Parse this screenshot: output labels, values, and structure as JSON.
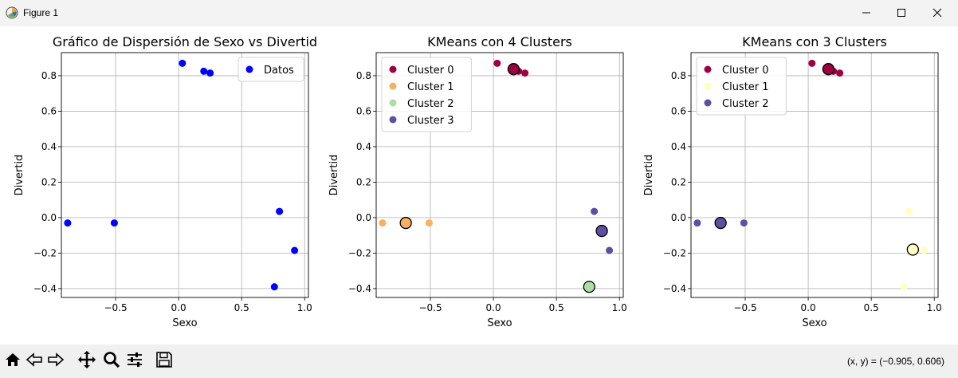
{
  "window": {
    "title": "Figure 1",
    "icon": "matplotlib-figure-icon",
    "controls": [
      "minimize-icon",
      "maximize-icon",
      "close-icon"
    ]
  },
  "toolbar": {
    "buttons": [
      "home-icon",
      "back-icon",
      "forward-icon",
      "pan-icon",
      "zoom-icon",
      "configure-subplots-icon",
      "save-icon"
    ],
    "coords_text": "(x, y) = (−0.905, 0.606)"
  },
  "colors": {
    "cluster0": "#9e0142",
    "cluster1_k4": "#fdae61",
    "cluster2_k4": "#abdda4",
    "cluster3_k4": "#5e4fa2",
    "cluster1_k3": "#ffffbf",
    "datos": "#0000ff"
  },
  "chart_data": [
    {
      "type": "scatter",
      "title": "Gráfico de Dispersión de Sexo vs Divertid",
      "xlabel": "Sexo",
      "ylabel": "Divertid",
      "xlim": [
        -0.93,
        1.03
      ],
      "ylim": [
        -0.45,
        0.93
      ],
      "xticks": [
        -0.5,
        0.0,
        0.5,
        1.0
      ],
      "xtick_labels": [
        "−0.5",
        "0.0",
        "0.5",
        "1.0"
      ],
      "yticks": [
        -0.4,
        -0.2,
        0.0,
        0.2,
        0.4,
        0.6,
        0.8
      ],
      "ytick_labels": [
        "−0.4",
        "−0.2",
        "0.0",
        "0.2",
        "0.4",
        "0.6",
        "0.8"
      ],
      "grid": true,
      "legend": "top-right",
      "series": [
        {
          "name": "Datos",
          "color": "#0000ff",
          "points": [
            [
              -0.88,
              -0.03
            ],
            [
              -0.51,
              -0.03
            ],
            [
              0.03,
              0.87
            ],
            [
              0.2,
              0.825
            ],
            [
              0.25,
              0.815
            ],
            [
              0.8,
              0.035
            ],
            [
              0.92,
              -0.185
            ],
            [
              0.76,
              -0.39
            ]
          ]
        }
      ]
    },
    {
      "type": "scatter",
      "title": "KMeans con 4 Clusters",
      "xlabel": "Sexo",
      "ylabel": "Divertid",
      "xlim": [
        -0.93,
        1.03
      ],
      "ylim": [
        -0.45,
        0.93
      ],
      "xticks": [
        -0.5,
        0.0,
        0.5,
        1.0
      ],
      "xtick_labels": [
        "−0.5",
        "0.0",
        "0.5",
        "1.0"
      ],
      "yticks": [
        -0.4,
        -0.2,
        0.0,
        0.2,
        0.4,
        0.6,
        0.8
      ],
      "ytick_labels": [
        "−0.4",
        "−0.2",
        "0.0",
        "0.2",
        "0.4",
        "0.6",
        "0.8"
      ],
      "grid": true,
      "legend": "top-left",
      "series": [
        {
          "name": "Cluster 0",
          "color": "#9e0142",
          "points": [
            [
              0.03,
              0.87
            ],
            [
              0.2,
              0.825
            ],
            [
              0.25,
              0.815
            ]
          ]
        },
        {
          "name": "Cluster 1",
          "color": "#fdae61",
          "points": [
            [
              -0.88,
              -0.03
            ],
            [
              -0.51,
              -0.03
            ]
          ]
        },
        {
          "name": "Cluster 2",
          "color": "#abdda4",
          "points": [
            [
              0.76,
              -0.39
            ]
          ]
        },
        {
          "name": "Cluster 3",
          "color": "#5e4fa2",
          "points": [
            [
              0.8,
              0.035
            ],
            [
              0.92,
              -0.185
            ]
          ]
        }
      ],
      "centroids": [
        {
          "color": "#9e0142",
          "x": 0.16,
          "y": 0.837
        },
        {
          "color": "#fdae61",
          "x": -0.695,
          "y": -0.03
        },
        {
          "color": "#abdda4",
          "x": 0.76,
          "y": -0.39
        },
        {
          "color": "#5e4fa2",
          "x": 0.86,
          "y": -0.075
        }
      ]
    },
    {
      "type": "scatter",
      "title": "KMeans con 3 Clusters",
      "xlabel": "Sexo",
      "ylabel": "Divertid",
      "xlim": [
        -0.93,
        1.03
      ],
      "ylim": [
        -0.45,
        0.93
      ],
      "xticks": [
        -0.5,
        0.0,
        0.5,
        1.0
      ],
      "xtick_labels": [
        "−0.5",
        "0.0",
        "0.5",
        "1.0"
      ],
      "yticks": [
        -0.4,
        -0.2,
        0.0,
        0.2,
        0.4,
        0.6,
        0.8
      ],
      "ytick_labels": [
        "−0.4",
        "−0.2",
        "0.0",
        "0.2",
        "0.4",
        "0.6",
        "0.8"
      ],
      "grid": true,
      "legend": "top-left",
      "series": [
        {
          "name": "Cluster 0",
          "color": "#9e0142",
          "points": [
            [
              0.03,
              0.87
            ],
            [
              0.2,
              0.825
            ],
            [
              0.25,
              0.815
            ]
          ]
        },
        {
          "name": "Cluster 1",
          "color": "#ffffbf",
          "points": [
            [
              0.8,
              0.035
            ],
            [
              0.92,
              -0.185
            ],
            [
              0.76,
              -0.39
            ]
          ]
        },
        {
          "name": "Cluster 2",
          "color": "#5e4fa2",
          "points": [
            [
              -0.88,
              -0.03
            ],
            [
              -0.51,
              -0.03
            ]
          ]
        }
      ],
      "centroids": [
        {
          "color": "#9e0142",
          "x": 0.16,
          "y": 0.837
        },
        {
          "color": "#ffffbf",
          "x": 0.83,
          "y": -0.18
        },
        {
          "color": "#5e4fa2",
          "x": -0.695,
          "y": -0.03
        }
      ]
    }
  ]
}
